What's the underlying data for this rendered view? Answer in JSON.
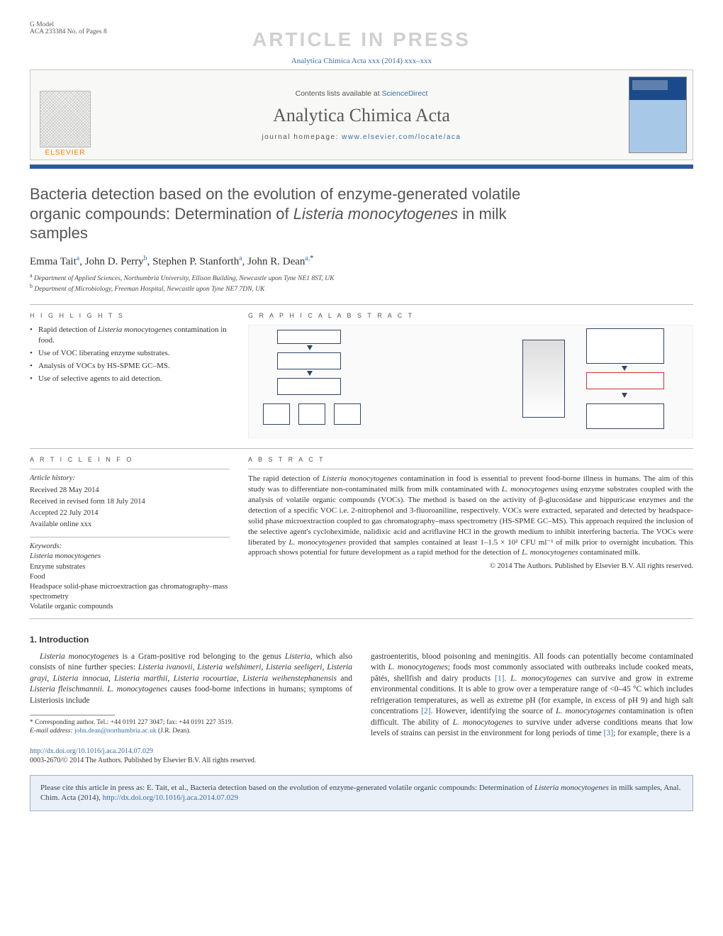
{
  "header": {
    "model_label": "G Model",
    "model_number": "ACA 233384 No. of Pages 8",
    "watermark": "ARTICLE IN PRESS",
    "journal_ref": "Analytica Chimica Acta xxx (2014) xxx–xxx",
    "contents_prefix": "Contents lists available at ",
    "contents_link": "ScienceDirect",
    "journal_title": "Analytica Chimica Acta",
    "homepage_prefix": "journal homepage: ",
    "homepage_url": "www.elsevier.com/locate/aca",
    "elsevier": "ELSEVIER"
  },
  "title": {
    "line1": "Bacteria detection based on the evolution of enzyme-generated volatile",
    "line2_pre": "organic compounds: Determination of ",
    "line2_ital": "Listeria monocytogenes",
    "line2_post": " in milk",
    "line3": "samples"
  },
  "authors": {
    "a1_name": "Emma Tait",
    "a1_sup": "a",
    "a2_name": "John D. Perry",
    "a2_sup": "b",
    "a3_name": "Stephen P. Stanforth",
    "a3_sup": "a",
    "a4_name": "John R. Dean",
    "a4_sup": "a,",
    "a4_star": "*"
  },
  "affiliations": {
    "a": "Department of Applied Sciences, Northumbria University, Ellison Building, Newcastle upon Tyne NE1 8ST, UK",
    "b": "Department of Microbiology, Freeman Hospital, Newcastle upon Tyne NE7 7DN, UK"
  },
  "sections": {
    "highlights": "H I G H L I G H T S",
    "graphical": "G R A P H I C A L  A B S T R A C T",
    "info": "A R T I C L E  I N F O",
    "abstract": "A B S T R A C T"
  },
  "highlights": [
    {
      "pre": "Rapid detection of ",
      "ital": "Listeria monocytogenes",
      "post": " contamination in food."
    },
    {
      "pre": "Use of VOC liberating enzyme substrates.",
      "ital": "",
      "post": ""
    },
    {
      "pre": "Analysis of VOCs by HS-SPME GC–MS.",
      "ital": "",
      "post": ""
    },
    {
      "pre": "Use of selective agents to aid detection.",
      "ital": "",
      "post": ""
    }
  ],
  "article_info": {
    "history_label": "Article history:",
    "received": "Received 28 May 2014",
    "revised": "Received in revised form 18 July 2014",
    "accepted": "Accepted 22 July 2014",
    "online": "Available online xxx",
    "keywords_label": "Keywords:",
    "keywords": [
      {
        "ital": true,
        "text": "Listeria monocytogenes"
      },
      {
        "ital": false,
        "text": "Enzyme substrates"
      },
      {
        "ital": false,
        "text": "Food"
      },
      {
        "ital": false,
        "text": "Headspace solid-phase microextraction gas chromatography–mass spectrometry"
      },
      {
        "ital": false,
        "text": "Volatile organic compounds"
      }
    ]
  },
  "abstract": {
    "text_parts": [
      {
        "t": "The rapid detection of "
      },
      {
        "t": "Listeria monocytogenes",
        "i": true
      },
      {
        "t": " contamination in food is essential to prevent food-borne illness in humans. The aim of this study was to differentiate non-contaminated milk from milk contaminated with "
      },
      {
        "t": "L. monocytogenes",
        "i": true
      },
      {
        "t": " using enzyme substrates coupled with the analysis of volatile organic compounds (VOCs). The method is based on the activity of β-glucosidase and hippuricase enzymes and the detection of a specific VOC i.e. 2-nitrophenol and 3-fluoroaniline, respectively. VOCs were extracted, separated and detected by headspace-solid phase microextraction coupled to gas chromatography–mass spectrometry (HS-SPME GC–MS). This approach required the inclusion of the selective agent's cycloheximide, nalidixic acid and acriflavine HCl in the growth medium to inhibit interfering bacteria. The VOCs were liberated by "
      },
      {
        "t": "L. monocytogenes",
        "i": true
      },
      {
        "t": " provided that samples contained at least 1–1.5 × 10² CFU ml⁻¹ of milk prior to overnight incubation. This approach shows potential for future development as a rapid method for the detection of "
      },
      {
        "t": "L. monocytogenes",
        "i": true
      },
      {
        "t": " contaminated milk."
      }
    ],
    "copyright": "© 2014 The Authors. Published by Elsevier B.V. All rights reserved."
  },
  "intro": {
    "heading": "1. Introduction",
    "p1_parts": [
      {
        "t": "Listeria monocytogenes",
        "i": true
      },
      {
        "t": " is a Gram-positive rod belonging to the genus "
      },
      {
        "t": "Listeria",
        "i": true
      },
      {
        "t": ", which also consists of nine further species: "
      },
      {
        "t": "Listeria ivanovii, Listeria welshimeri, Listeria seeligeri, Listeria grayi, Listeria innocua, Listeria marthii, Listeria rocourtiae, Listeria weihenstephanensis",
        "i": true
      },
      {
        "t": " and "
      },
      {
        "t": "Listeria fleischmannii. L. monocytogenes",
        "i": true
      },
      {
        "t": " causes food-borne infections in humans; symptoms of Listeriosis include"
      }
    ],
    "p2_parts": [
      {
        "t": "gastroenteritis, blood poisoning and meningitis. All foods can potentially become contaminated with "
      },
      {
        "t": "L. monocytogenes",
        "i": true
      },
      {
        "t": "; foods most commonly associated with outbreaks include cooked meats, pâtés, shellfish and dairy products "
      },
      {
        "t": "[1]",
        "ref": true
      },
      {
        "t": ". "
      },
      {
        "t": "L. monocytogenes",
        "i": true
      },
      {
        "t": " can survive and grow in extreme environmental conditions. It is able to grow over a temperature range of <0–45 °C which includes refrigeration temperatures, as well as extreme pH (for example, in excess of pH 9) and high salt concentrations "
      },
      {
        "t": "[2]",
        "ref": true
      },
      {
        "t": ". However, identifying the source of "
      },
      {
        "t": "L. monocytogenes",
        "i": true
      },
      {
        "t": " contamination is often difficult. The ability of "
      },
      {
        "t": "L. monocytogenes",
        "i": true
      },
      {
        "t": " to survive under adverse conditions means that low levels of strains can persist in the environment for long periods of time "
      },
      {
        "t": "[3]",
        "ref": true
      },
      {
        "t": "; for example, there is a"
      }
    ]
  },
  "footnote": {
    "corr": "* Corresponding author. Tel.: +44 0191 227 3047; fax: +44 0191 227 3519.",
    "email_label": "E-mail address: ",
    "email": "john.dean@northumbria.ac.uk",
    "email_person": " (J.R. Dean)."
  },
  "doi": {
    "url": "http://dx.doi.org/10.1016/j.aca.2014.07.029",
    "line2": "0003-2670/© 2014 The Authors. Published by Elsevier B.V. All rights reserved."
  },
  "citebox": {
    "pre": "Please cite this article in press as: E. Tait, et al., Bacteria detection based on the evolution of enzyme-generated volatile organic compounds: Determination of ",
    "ital": "Listeria monocytogenes",
    "post": " in milk samples, Anal. Chim. Acta (2014), ",
    "url": "http://dx.doi.org/10.1016/j.aca.2014.07.029"
  },
  "colors": {
    "link": "#3a6ea5",
    "rule_blue": "#2a5a9a",
    "watermark": "#d0d0d0",
    "orange": "#ff7a00",
    "cite_bg": "#eaf0f7",
    "cite_border": "#9ab0c8"
  }
}
